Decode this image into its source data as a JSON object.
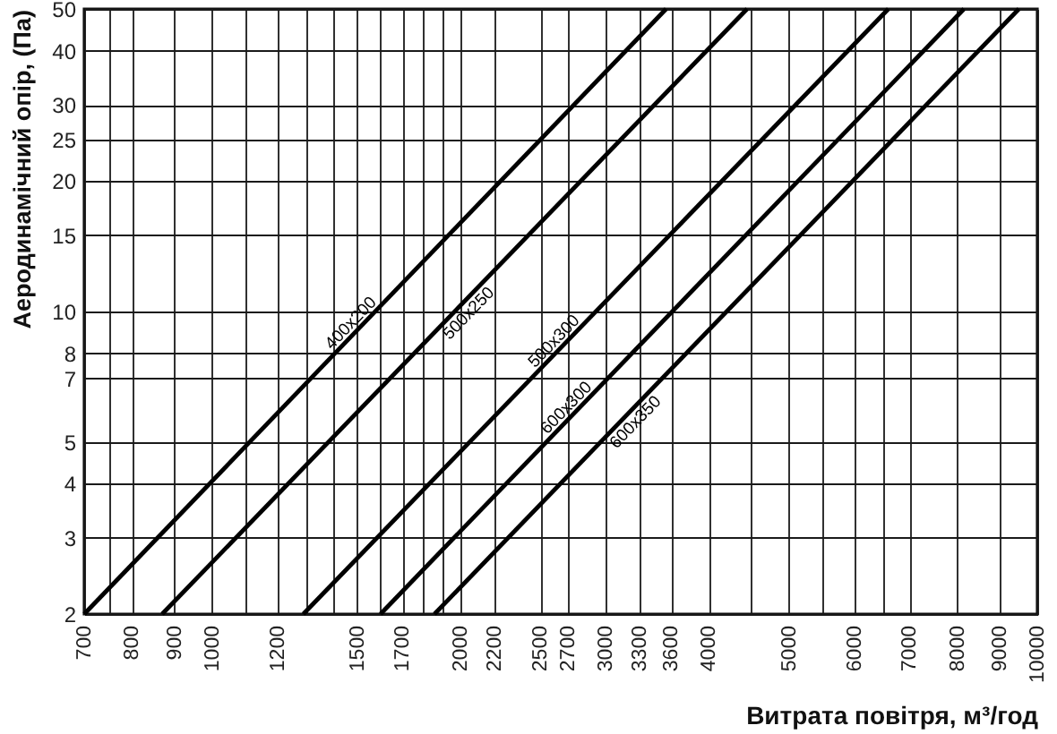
{
  "chart_data": {
    "type": "line",
    "xlabel": "Витрата повітря, м³/год",
    "ylabel": "Аеродинамічний опір, (Па)",
    "log": "xy",
    "xlim": [
      700,
      10000
    ],
    "ylim": [
      2,
      50
    ],
    "xticks": [
      700,
      {
        "value": 750,
        "label": null
      },
      800,
      900,
      1000,
      {
        "value": 1100,
        "label": null
      },
      1200,
      {
        "value": 1300,
        "label": null
      },
      {
        "value": 1400,
        "label": null
      },
      1500,
      {
        "value": 1600,
        "label": null
      },
      1700,
      {
        "value": 1800,
        "label": null
      },
      {
        "value": 1900,
        "label": null
      },
      2000,
      2200,
      2500,
      2700,
      3000,
      3300,
      3600,
      4000,
      {
        "value": 4500,
        "label": null
      },
      5000,
      {
        "value": 5500,
        "label": null
      },
      6000,
      {
        "value": 6500,
        "label": null
      },
      7000,
      8000,
      9000,
      10000
    ],
    "yticks": [
      2,
      3,
      4,
      5,
      7,
      8,
      10,
      15,
      20,
      25,
      30,
      40,
      50
    ],
    "grid": true,
    "legend": false,
    "line_style": "solid",
    "series": [
      {
        "name": "400x200",
        "color": "#000000",
        "x": [
          700,
          3550
        ],
        "values": [
          2,
          50
        ]
      },
      {
        "name": "500x250",
        "color": "#000000",
        "x": [
          870,
          4450
        ],
        "values": [
          2,
          50
        ]
      },
      {
        "name": "500x300",
        "color": "#000000",
        "x": [
          1290,
          6600
        ],
        "values": [
          2,
          50
        ]
      },
      {
        "name": "600x300",
        "color": "#000000",
        "x": [
          1600,
          8150
        ],
        "values": [
          2,
          50
        ]
      },
      {
        "name": "600x350",
        "color": "#000000",
        "x": [
          1860,
          9500
        ],
        "values": [
          2,
          50
        ]
      }
    ]
  }
}
